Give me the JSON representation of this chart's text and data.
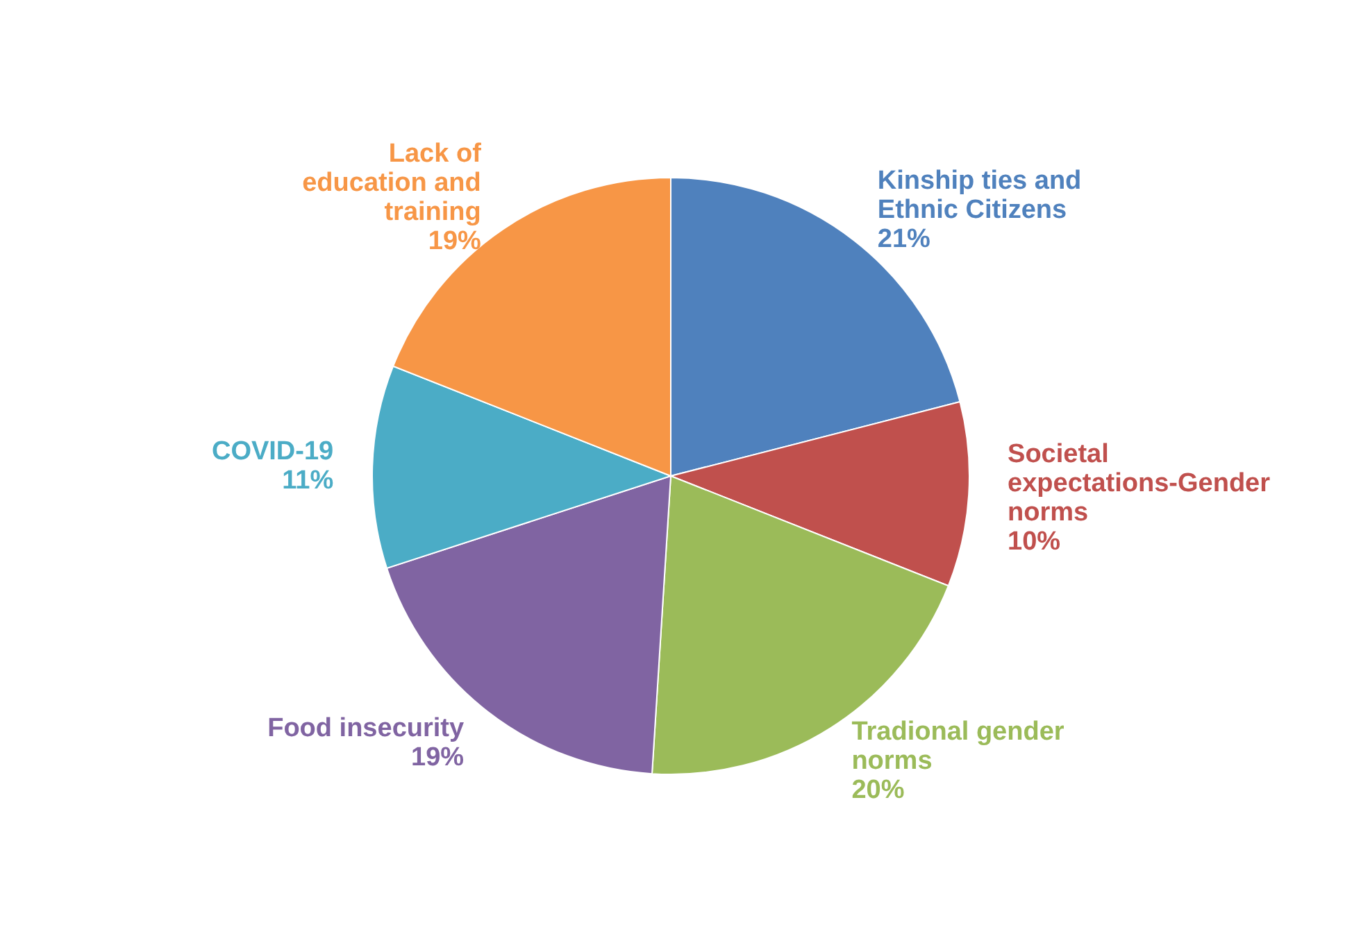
{
  "chart_data": {
    "type": "pie",
    "categories": [
      "Kinship ties and Ethnic Citizens",
      "Societal expectations-Gender norms",
      "Tradional gender norms",
      "Food insecurity",
      "COVID-19",
      "Lack of education and training"
    ],
    "values": [
      21,
      10,
      20,
      19,
      11,
      19
    ],
    "value_labels": [
      "21%",
      "10%",
      "20%",
      "19%",
      "11%",
      "19%"
    ],
    "colors": [
      "#4f81bd",
      "#c0504d",
      "#9bbb59",
      "#8064a2",
      "#4bacc6",
      "#f79646"
    ],
    "legend": false
  }
}
